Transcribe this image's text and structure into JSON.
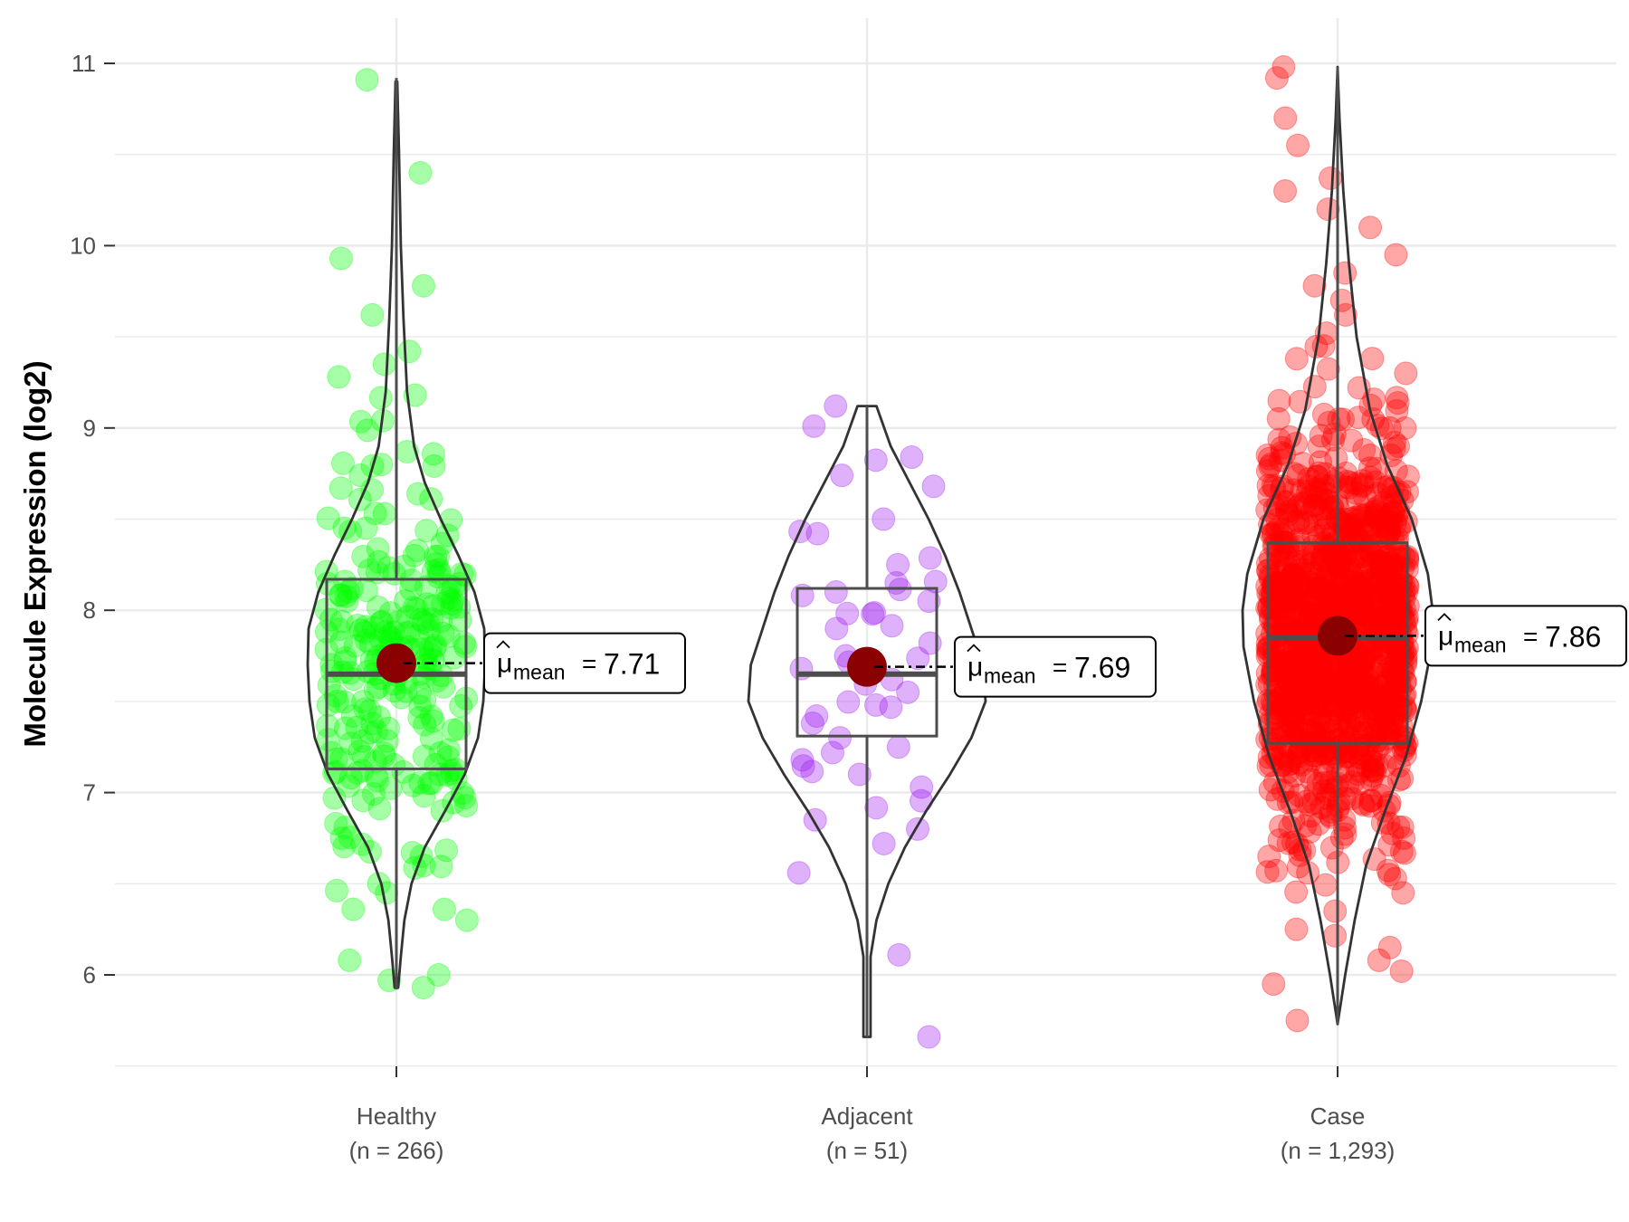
{
  "chart_data": {
    "type": "violin",
    "title": "",
    "xlabel": "",
    "ylabel": "Molecule Expression (log2)",
    "ylim": [
      5.5,
      11.3
    ],
    "yticks": [
      6,
      7,
      8,
      9,
      10,
      11
    ],
    "grid": true,
    "annotation_label": {
      "symbol": "μ",
      "subscript": "mean",
      "equals": "="
    },
    "groups": [
      {
        "name": "Healthy",
        "n_label": "(n = 266)",
        "color": "#00ff00",
        "mean_label": "7.71",
        "box": {
          "min": 5.92,
          "q1": 7.13,
          "median": 7.65,
          "q3": 8.17,
          "max": 10.92
        },
        "violin": [
          [
            5.93,
            0.02
          ],
          [
            6.1,
            0.05
          ],
          [
            6.3,
            0.09
          ],
          [
            6.5,
            0.17
          ],
          [
            6.7,
            0.32
          ],
          [
            6.9,
            0.55
          ],
          [
            7.1,
            0.77
          ],
          [
            7.3,
            0.92
          ],
          [
            7.5,
            0.98
          ],
          [
            7.7,
            1.0
          ],
          [
            7.9,
            0.99
          ],
          [
            8.1,
            0.88
          ],
          [
            8.3,
            0.7
          ],
          [
            8.5,
            0.5
          ],
          [
            8.7,
            0.32
          ],
          [
            8.9,
            0.2
          ],
          [
            9.2,
            0.12
          ],
          [
            9.6,
            0.08
          ],
          [
            10.0,
            0.05
          ],
          [
            10.5,
            0.03
          ],
          [
            10.9,
            0.01
          ]
        ]
      },
      {
        "name": "Adjacent",
        "n_label": "(n = 51)",
        "color": "#a020f0",
        "mean_label": "7.69",
        "box": {
          "min": 5.66,
          "q1": 7.31,
          "median": 7.65,
          "q3": 8.12,
          "max": 9.12
        },
        "violin": [
          [
            5.66,
            0.03
          ],
          [
            5.8,
            0.03
          ],
          [
            6.1,
            0.03
          ],
          [
            6.3,
            0.08
          ],
          [
            6.5,
            0.18
          ],
          [
            6.7,
            0.32
          ],
          [
            6.9,
            0.5
          ],
          [
            7.1,
            0.7
          ],
          [
            7.3,
            0.88
          ],
          [
            7.5,
            1.0
          ],
          [
            7.7,
            0.98
          ],
          [
            7.9,
            0.88
          ],
          [
            8.1,
            0.78
          ],
          [
            8.3,
            0.66
          ],
          [
            8.5,
            0.52
          ],
          [
            8.7,
            0.36
          ],
          [
            8.9,
            0.2
          ],
          [
            9.12,
            0.08
          ]
        ]
      },
      {
        "name": "Case",
        "n_label": "(n = 1,293)",
        "color": "#ff0000",
        "mean_label": "7.86",
        "box": {
          "min": 5.73,
          "q1": 7.27,
          "median": 7.85,
          "q3": 8.37,
          "max": 10.98
        },
        "violin": [
          [
            5.73,
            0.0
          ],
          [
            6.0,
            0.08
          ],
          [
            6.3,
            0.18
          ],
          [
            6.6,
            0.3
          ],
          [
            6.9,
            0.5
          ],
          [
            7.2,
            0.72
          ],
          [
            7.5,
            0.88
          ],
          [
            7.8,
            0.99
          ],
          [
            8.0,
            1.0
          ],
          [
            8.2,
            0.95
          ],
          [
            8.5,
            0.78
          ],
          [
            8.8,
            0.52
          ],
          [
            9.1,
            0.34
          ],
          [
            9.5,
            0.2
          ],
          [
            9.9,
            0.12
          ],
          [
            10.3,
            0.06
          ],
          [
            10.7,
            0.02
          ],
          [
            10.98,
            0.0
          ]
        ]
      }
    ],
    "points_sample": [
      [
        5.97,
        10.91,
        10.4,
        9.93,
        9.78,
        9.62,
        9.42,
        9.35,
        9.28,
        9.18,
        9.04,
        8.87,
        8.8,
        8.67,
        8.53,
        8.45,
        8.3,
        8.2,
        8.12,
        8.05,
        7.95,
        7.88,
        7.8,
        7.72,
        7.66,
        7.58,
        7.5,
        7.42,
        7.35,
        7.27,
        7.2,
        7.12,
        7.05,
        6.97,
        6.9,
        6.83,
        6.75,
        6.67,
        6.6,
        6.5,
        6.45,
        6.36,
        6.3,
        6.08,
        6.0,
        5.93
      ],
      [
        9.12,
        9.01,
        8.84,
        8.74,
        8.68,
        8.5,
        8.42,
        8.25,
        8.15,
        8.1,
        8.05,
        7.98,
        7.9,
        7.82,
        7.75,
        7.68,
        7.62,
        7.55,
        7.48,
        7.42,
        7.38,
        7.3,
        7.25,
        7.18,
        7.1,
        7.03,
        6.85,
        6.8,
        6.72,
        6.56,
        6.11,
        5.66
      ],
      [
        10.98,
        10.92,
        10.7,
        10.55,
        10.37,
        10.3,
        10.2,
        10.1,
        9.95,
        9.85,
        9.78,
        9.7,
        9.62,
        9.52,
        9.45,
        9.38,
        9.3,
        9.22,
        9.15,
        9.05,
        8.95,
        8.85,
        8.75,
        8.65,
        8.55,
        8.45,
        8.35,
        8.25,
        8.15,
        8.05,
        7.95,
        7.85,
        7.75,
        7.65,
        7.55,
        7.45,
        7.35,
        7.25,
        7.15,
        7.05,
        6.95,
        6.85,
        6.75,
        6.65,
        6.55,
        6.45,
        6.35,
        6.25,
        6.15,
        6.08,
        6.02,
        5.95,
        5.75
      ]
    ]
  }
}
